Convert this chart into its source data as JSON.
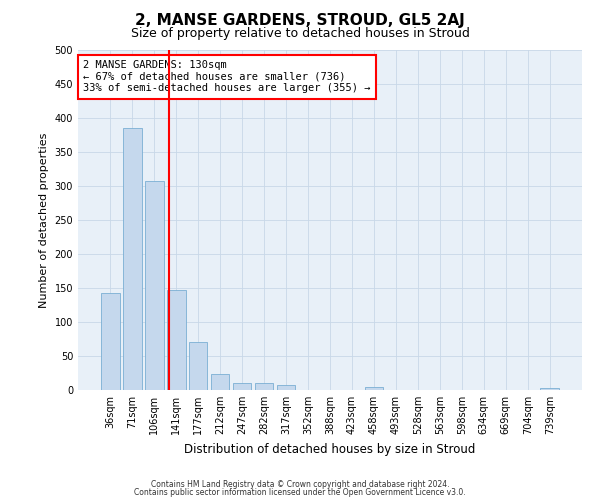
{
  "title": "2, MANSE GARDENS, STROUD, GL5 2AJ",
  "subtitle": "Size of property relative to detached houses in Stroud",
  "xlabel": "Distribution of detached houses by size in Stroud",
  "ylabel": "Number of detached properties",
  "bar_labels": [
    "36sqm",
    "71sqm",
    "106sqm",
    "141sqm",
    "177sqm",
    "212sqm",
    "247sqm",
    "282sqm",
    "317sqm",
    "352sqm",
    "388sqm",
    "423sqm",
    "458sqm",
    "493sqm",
    "528sqm",
    "563sqm",
    "598sqm",
    "634sqm",
    "669sqm",
    "704sqm",
    "739sqm"
  ],
  "bar_values": [
    143,
    385,
    308,
    147,
    70,
    24,
    10,
    10,
    7,
    0,
    0,
    0,
    5,
    0,
    0,
    0,
    0,
    0,
    0,
    0,
    3
  ],
  "bar_color": "#c5d8ed",
  "bar_edge_color": "#7aafd4",
  "grid_color": "#c8d8e8",
  "background_color": "#e8f0f8",
  "vline_color": "red",
  "vline_x": 2.68,
  "annotation_title": "2 MANSE GARDENS: 130sqm",
  "annotation_line1": "← 67% of detached houses are smaller (736)",
  "annotation_line2": "33% of semi-detached houses are larger (355) →",
  "annotation_box_color": "white",
  "annotation_box_edge": "red",
  "ylim": [
    0,
    500
  ],
  "yticks": [
    0,
    50,
    100,
    150,
    200,
    250,
    300,
    350,
    400,
    450,
    500
  ],
  "footer1": "Contains HM Land Registry data © Crown copyright and database right 2024.",
  "footer2": "Contains public sector information licensed under the Open Government Licence v3.0.",
  "title_fontsize": 11,
  "subtitle_fontsize": 9,
  "tick_fontsize": 7,
  "ylabel_fontsize": 8,
  "xlabel_fontsize": 8.5,
  "annotation_fontsize": 7.5,
  "footer_fontsize": 5.5
}
